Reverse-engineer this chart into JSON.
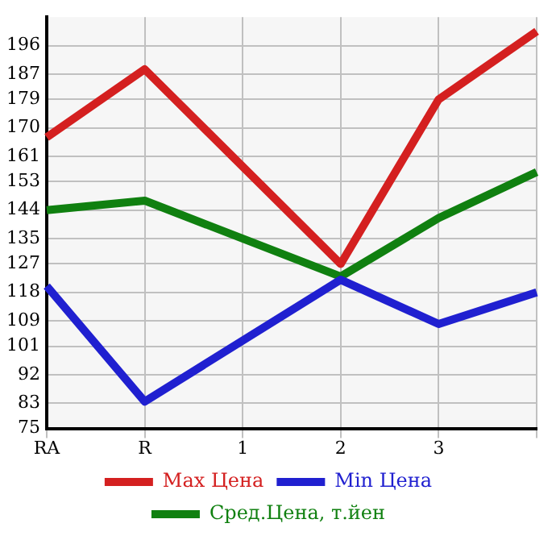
{
  "chart_data": {
    "type": "line",
    "categories": [
      "RA",
      "R",
      "1",
      "2",
      "3",
      null
    ],
    "series": [
      {
        "name": "Max Цена",
        "color": "#d42020",
        "values": [
          167,
          188.5,
          null,
          127,
          179,
          200.5
        ]
      },
      {
        "name": "Min Цена",
        "color": "#2020d0",
        "values": [
          120,
          83.5,
          null,
          122,
          108,
          118
        ]
      },
      {
        "name": "Сред.Цена, т.йен",
        "color": "#108010",
        "values": [
          144,
          147,
          null,
          123,
          141.5,
          156
        ]
      }
    ],
    "ylim": [
      75,
      205
    ],
    "yticks": [
      75,
      83,
      92,
      101,
      109,
      118,
      127,
      135,
      144,
      153,
      161,
      170,
      179,
      187,
      196
    ],
    "grid": true,
    "legend": "bottom",
    "marker": "none",
    "line_style": "solid"
  }
}
